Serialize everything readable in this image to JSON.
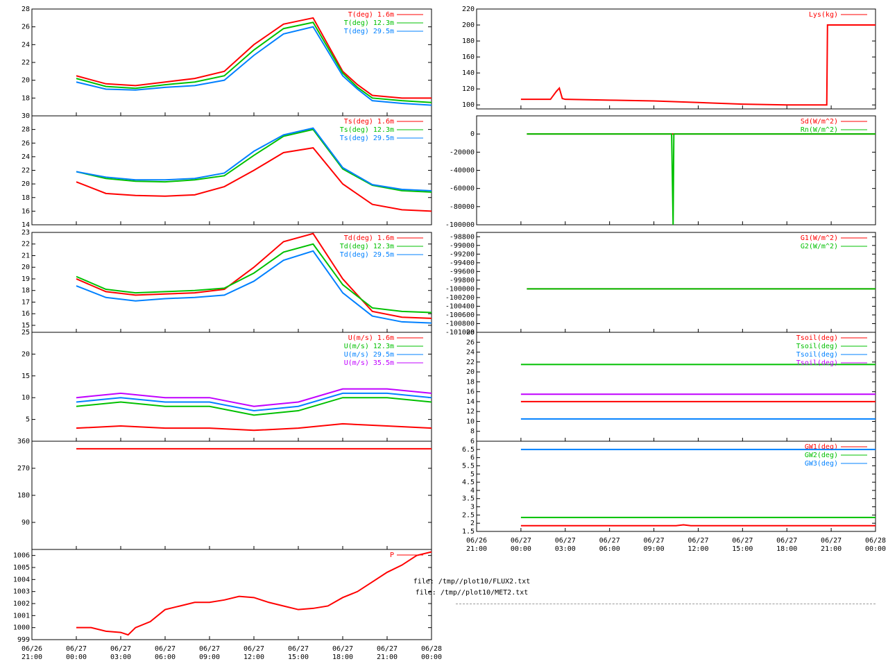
{
  "colors": {
    "red": "#ff0000",
    "green": "#00c000",
    "blue": "#0080ff",
    "purple": "#c000ff",
    "axis": "#000000",
    "grid": "#c0c0c0"
  },
  "footer": {
    "file1": "file: /tmp//plot10/FLUX2.txt",
    "file2": "file: /tmp//plot10/MET2.txt"
  },
  "chart_data": [
    {
      "id": "temperature",
      "type": "line",
      "yticks": [
        18,
        20,
        22,
        24,
        26,
        28
      ],
      "ylim": [
        16,
        28
      ],
      "series": [
        {
          "name": "T(deg)  1.6m",
          "color": "#ff0000",
          "x": [
            0,
            2,
            4,
            6,
            8,
            10,
            12,
            14,
            16,
            18,
            19,
            20,
            22,
            24
          ],
          "y": [
            20.5,
            19.6,
            19.4,
            19.8,
            20.2,
            21.0,
            24.0,
            26.3,
            27.0,
            21.0,
            19.5,
            18.3,
            18.0,
            18.0
          ]
        },
        {
          "name": "T(deg) 12.3m",
          "color": "#00c000",
          "x": [
            0,
            2,
            4,
            6,
            8,
            10,
            12,
            14,
            16,
            18,
            19,
            20,
            22,
            24
          ],
          "y": [
            20.2,
            19.3,
            19.1,
            19.5,
            19.8,
            20.5,
            23.4,
            25.8,
            26.5,
            20.8,
            19.2,
            18.0,
            17.7,
            17.5
          ]
        },
        {
          "name": "T(deg) 29.5m",
          "color": "#0080ff",
          "x": [
            0,
            2,
            4,
            6,
            8,
            10,
            12,
            14,
            16,
            18,
            19,
            20,
            22,
            24
          ],
          "y": [
            19.8,
            19.0,
            18.9,
            19.2,
            19.4,
            20.0,
            22.8,
            25.2,
            26.0,
            20.5,
            19.0,
            17.7,
            17.4,
            17.2
          ]
        }
      ]
    },
    {
      "id": "surface-temperature",
      "type": "line",
      "yticks": [
        14,
        16,
        18,
        20,
        22,
        24,
        26,
        28,
        30
      ],
      "ylim": [
        14,
        30
      ],
      "series": [
        {
          "name": "Ts(deg)  1.6m",
          "color": "#ff0000",
          "x": [
            0,
            2,
            4,
            6,
            8,
            10,
            12,
            14,
            16,
            18,
            20,
            22,
            24
          ],
          "y": [
            20.3,
            18.6,
            18.3,
            18.2,
            18.4,
            19.6,
            22.0,
            24.6,
            25.3,
            20.0,
            17.0,
            16.2,
            16.0
          ]
        },
        {
          "name": "Ts(deg) 12.3m",
          "color": "#00c000",
          "x": [
            0,
            2,
            4,
            6,
            8,
            10,
            12,
            14,
            16,
            18,
            20,
            22,
            24
          ],
          "y": [
            21.8,
            20.8,
            20.4,
            20.3,
            20.6,
            21.2,
            24.2,
            27.0,
            28.0,
            22.2,
            19.8,
            19.0,
            18.8
          ]
        },
        {
          "name": "Ts(deg) 29.5m",
          "color": "#0080ff",
          "x": [
            0,
            2,
            4,
            6,
            8,
            10,
            12,
            14,
            16,
            18,
            20,
            22,
            24
          ],
          "y": [
            21.8,
            21.0,
            20.6,
            20.6,
            20.8,
            21.6,
            24.8,
            27.2,
            28.2,
            22.4,
            19.9,
            19.2,
            19.0
          ]
        }
      ]
    },
    {
      "id": "dewpoint",
      "type": "line",
      "yticks": [
        15,
        16,
        17,
        18,
        19,
        20,
        21,
        22,
        23
      ],
      "ylim": [
        14.4,
        23
      ],
      "series": [
        {
          "name": "Td(deg)  1.6m",
          "color": "#ff0000",
          "x": [
            0,
            2,
            4,
            6,
            8,
            10,
            12,
            14,
            16,
            18,
            20,
            22,
            24
          ],
          "y": [
            19.0,
            17.9,
            17.6,
            17.7,
            17.8,
            18.1,
            20.0,
            22.2,
            22.9,
            19.0,
            16.2,
            15.7,
            15.6
          ]
        },
        {
          "name": "Td(deg) 12.3m",
          "color": "#00c000",
          "x": [
            0,
            2,
            4,
            6,
            8,
            10,
            12,
            14,
            16,
            18,
            20,
            22,
            24
          ],
          "y": [
            19.2,
            18.1,
            17.8,
            17.9,
            18.0,
            18.2,
            19.5,
            21.3,
            22.0,
            18.5,
            16.5,
            16.2,
            16.1
          ]
        },
        {
          "name": "Td(deg) 29.5m",
          "color": "#0080ff",
          "x": [
            0,
            2,
            4,
            6,
            8,
            10,
            12,
            14,
            16,
            18,
            20,
            22,
            24
          ],
          "y": [
            18.4,
            17.4,
            17.1,
            17.3,
            17.4,
            17.6,
            18.8,
            20.6,
            21.4,
            17.8,
            15.8,
            15.3,
            15.2
          ]
        }
      ]
    },
    {
      "id": "wind-speed",
      "type": "line",
      "yticks": [
        5,
        10,
        15,
        20,
        25
      ],
      "ylim": [
        0,
        25
      ],
      "series": [
        {
          "name": "U(m/s)  1.6m",
          "color": "#ff0000",
          "x": [
            0,
            3,
            6,
            9,
            12,
            15,
            18,
            21,
            24
          ],
          "y": [
            3,
            3.5,
            3,
            3,
            2.5,
            3,
            4,
            3.5,
            3
          ]
        },
        {
          "name": "U(m/s) 12.3m",
          "color": "#00c000",
          "x": [
            0,
            3,
            6,
            9,
            12,
            15,
            18,
            21,
            24
          ],
          "y": [
            8,
            9,
            8,
            8,
            6,
            7,
            10,
            10,
            9
          ]
        },
        {
          "name": "U(m/s) 29.5m",
          "color": "#0080ff",
          "x": [
            0,
            3,
            6,
            9,
            12,
            15,
            18,
            21,
            24
          ],
          "y": [
            9,
            10,
            9,
            9,
            7,
            8,
            11,
            11,
            10
          ]
        },
        {
          "name": "U(m/s) 35.5m",
          "color": "#c000ff",
          "x": [
            0,
            3,
            6,
            9,
            12,
            15,
            18,
            21,
            24
          ],
          "y": [
            10,
            11,
            10,
            10,
            8,
            9,
            12,
            12,
            11
          ]
        }
      ]
    },
    {
      "id": "wind-direction",
      "type": "line",
      "yticks": [
        90,
        180,
        270,
        360
      ],
      "ylim": [
        0,
        360
      ],
      "series": [
        {
          "name": "",
          "color": "#ff0000",
          "x": [
            0,
            24
          ],
          "y": [
            335,
            335
          ]
        }
      ]
    },
    {
      "id": "pressure",
      "type": "line",
      "yticks": [
        999,
        1000,
        1001,
        1002,
        1003,
        1004,
        1005,
        1006
      ],
      "ylim": [
        999,
        1006.5
      ],
      "series": [
        {
          "name": "P",
          "color": "#ff0000",
          "x": [
            0,
            1,
            2,
            3,
            3.5,
            4,
            5,
            6,
            7,
            8,
            9,
            10,
            11,
            12,
            13,
            14,
            15,
            16,
            17,
            18,
            19,
            20,
            21,
            22,
            23,
            24
          ],
          "y": [
            1000.0,
            1000.0,
            999.7,
            999.6,
            999.4,
            1000.0,
            1000.5,
            1001.5,
            1001.8,
            1002.1,
            1002.1,
            1002.3,
            1002.6,
            1002.5,
            1002.1,
            1001.8,
            1001.5,
            1001.6,
            1001.8,
            1002.5,
            1003.0,
            1003.8,
            1004.6,
            1005.2,
            1006.0,
            1006.3
          ]
        }
      ]
    },
    {
      "id": "lysimeter",
      "type": "line",
      "yticks": [
        100,
        120,
        140,
        160,
        180,
        200,
        220
      ],
      "ylim": [
        95,
        220
      ],
      "series": [
        {
          "name": "Lys(kg)",
          "color": "#ff0000",
          "x": [
            0,
            2,
            2.4,
            2.6,
            2.8,
            3,
            6,
            9,
            12,
            15,
            18,
            20.7,
            20.75,
            20.8,
            24
          ],
          "y": [
            107,
            107,
            117,
            121,
            108,
            107,
            106,
            105,
            103,
            101,
            100,
            100,
            200,
            200,
            200
          ]
        }
      ]
    },
    {
      "id": "radiation",
      "type": "line",
      "yticks": [
        -100000,
        -80000,
        -60000,
        -40000,
        -20000,
        0
      ],
      "ylim": [
        -100000,
        20000
      ],
      "series": [
        {
          "name": "Sd(W/m^2)",
          "color": "#ff0000",
          "x": [
            0.4,
            24
          ],
          "y": [
            0,
            0
          ]
        },
        {
          "name": "Rn(W/m^2)",
          "color": "#00c000",
          "x": [
            0.4,
            10.2,
            10.3,
            10.35,
            24
          ],
          "y": [
            0,
            0,
            -100000,
            0,
            0
          ]
        }
      ]
    },
    {
      "id": "ground-heat",
      "type": "line",
      "yticks": [
        -101000,
        -100800,
        -100600,
        -100400,
        -100200,
        -100000,
        -99800,
        -99600,
        -99400,
        -99200,
        -99000,
        -98800
      ],
      "ylim": [
        -101000,
        -98700
      ],
      "series": [
        {
          "name": "G1(W/m^2)",
          "color": "#ff0000",
          "x": [
            0.4,
            24
          ],
          "y": [
            -100000,
            -100000
          ]
        },
        {
          "name": "G2(W/m^2)",
          "color": "#00c000",
          "x": [
            0.4,
            24
          ],
          "y": [
            -100000,
            -100000
          ]
        }
      ]
    },
    {
      "id": "soil-temperature",
      "type": "line",
      "yticks": [
        6,
        8,
        10,
        12,
        14,
        16,
        18,
        20,
        22,
        24,
        26,
        28
      ],
      "ylim": [
        6,
        28
      ],
      "series": [
        {
          "name": "Tsoil(deg)",
          "color": "#ff0000",
          "x": [
            0,
            24
          ],
          "y": [
            14,
            14
          ]
        },
        {
          "name": "Tsoil(deg)",
          "color": "#00c000",
          "x": [
            0,
            24
          ],
          "y": [
            21.5,
            21.5
          ]
        },
        {
          "name": "Tsoil(deg)",
          "color": "#0080ff",
          "x": [
            0,
            24
          ],
          "y": [
            10.5,
            10.5
          ]
        },
        {
          "name": "Tsoil(deg)",
          "color": "#c000ff",
          "x": [
            0,
            24
          ],
          "y": [
            15.5,
            15.5
          ]
        }
      ]
    },
    {
      "id": "groundwater",
      "type": "line",
      "yticks": [
        1.5,
        2,
        2.5,
        3,
        3.5,
        4,
        4.5,
        5,
        5.5,
        6,
        6.5
      ],
      "ylim": [
        1.5,
        7
      ],
      "series": [
        {
          "name": "GW1(deg)",
          "color": "#ff0000",
          "x": [
            0,
            10.5,
            11,
            11.5,
            24
          ],
          "y": [
            1.85,
            1.85,
            1.9,
            1.85,
            1.85
          ]
        },
        {
          "name": "GW2(deg)",
          "color": "#00c000",
          "x": [
            0,
            24
          ],
          "y": [
            2.35,
            2.35
          ]
        },
        {
          "name": "GW3(deg)",
          "color": "#0080ff",
          "x": [
            0,
            24
          ],
          "y": [
            6.5,
            6.5
          ]
        }
      ]
    }
  ],
  "xaxis": {
    "ticks": [
      {
        "date": "06/26",
        "time": "21:00"
      },
      {
        "date": "06/27",
        "time": "00:00"
      },
      {
        "date": "06/27",
        "time": "03:00"
      },
      {
        "date": "06/27",
        "time": "06:00"
      },
      {
        "date": "06/27",
        "time": "09:00"
      },
      {
        "date": "06/27",
        "time": "12:00"
      },
      {
        "date": "06/27",
        "time": "15:00"
      },
      {
        "date": "06/27",
        "time": "18:00"
      },
      {
        "date": "06/27",
        "time": "21:00"
      },
      {
        "date": "06/28",
        "time": "00:00"
      }
    ]
  }
}
